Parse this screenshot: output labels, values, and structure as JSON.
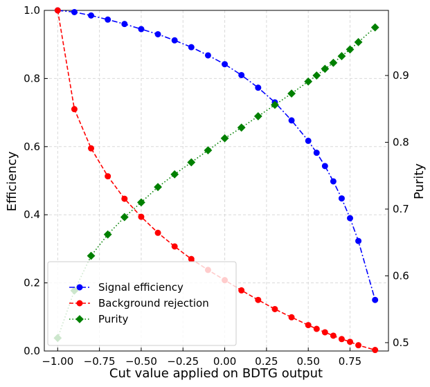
{
  "chart_data": {
    "type": "line",
    "xlabel": "Cut value applied on BDTG output",
    "ylabel": "Efficiency",
    "y2label": "Purity",
    "xlim": [
      -1.08,
      0.98
    ],
    "ylim": [
      0,
      1.0
    ],
    "y2lim": [
      0.4875,
      0.9975
    ],
    "grid": true,
    "legend_position": "lower-left",
    "x_ticks": [
      {
        "value": -1.0,
        "label": "−1.00"
      },
      {
        "value": -0.75,
        "label": "−0.75"
      },
      {
        "value": -0.5,
        "label": "−0.50"
      },
      {
        "value": -0.25,
        "label": "−0.25"
      },
      {
        "value": 0.0,
        "label": "0.00"
      },
      {
        "value": 0.25,
        "label": "0.25"
      },
      {
        "value": 0.5,
        "label": "0.50"
      },
      {
        "value": 0.75,
        "label": "0.75"
      }
    ],
    "y_ticks": [
      {
        "value": 0.0,
        "label": "0.0"
      },
      {
        "value": 0.2,
        "label": "0.2"
      },
      {
        "value": 0.4,
        "label": "0.4"
      },
      {
        "value": 0.6,
        "label": "0.6"
      },
      {
        "value": 0.8,
        "label": "0.8"
      },
      {
        "value": 1.0,
        "label": "1.0"
      }
    ],
    "y2_ticks": [
      {
        "value": 0.5,
        "label": "0.5"
      },
      {
        "value": 0.6,
        "label": "0.6"
      },
      {
        "value": 0.7,
        "label": "0.7"
      },
      {
        "value": 0.8,
        "label": "0.8"
      },
      {
        "value": 0.9,
        "label": "0.9"
      }
    ],
    "x": [
      -1.0,
      -0.9,
      -0.8,
      -0.7,
      -0.6,
      -0.5,
      -0.4,
      -0.3,
      -0.2,
      -0.1,
      0.0,
      0.1,
      0.2,
      0.3,
      0.4,
      0.5,
      0.55,
      0.6,
      0.65,
      0.7,
      0.75,
      0.8,
      0.9
    ],
    "series": [
      {
        "name": "Signal efficiency",
        "axis": "left",
        "color": "#0000ff",
        "linestyle": "dashdot",
        "marker": "circle",
        "values": [
          1.0,
          0.995,
          0.985,
          0.973,
          0.96,
          0.945,
          0.93,
          0.912,
          0.892,
          0.868,
          0.842,
          0.81,
          0.773,
          0.73,
          0.677,
          0.617,
          0.582,
          0.543,
          0.498,
          0.448,
          0.39,
          0.323,
          0.15
        ]
      },
      {
        "name": "Background rejection",
        "axis": "left",
        "color": "#ff0000",
        "linestyle": "dashed",
        "marker": "circle",
        "values": [
          1.0,
          0.71,
          0.595,
          0.513,
          0.447,
          0.394,
          0.347,
          0.307,
          0.27,
          0.238,
          0.208,
          0.178,
          0.15,
          0.123,
          0.099,
          0.076,
          0.065,
          0.055,
          0.045,
          0.035,
          0.027,
          0.017,
          0.003
        ]
      },
      {
        "name": "Purity",
        "axis": "right",
        "color": "#008000",
        "linestyle": "dotted",
        "marker": "diamond",
        "values": [
          0.507,
          0.578,
          0.63,
          0.662,
          0.688,
          0.71,
          0.733,
          0.752,
          0.77,
          0.788,
          0.806,
          0.822,
          0.839,
          0.856,
          0.873,
          0.891,
          0.9,
          0.91,
          0.919,
          0.929,
          0.939,
          0.95,
          0.972
        ]
      }
    ]
  }
}
